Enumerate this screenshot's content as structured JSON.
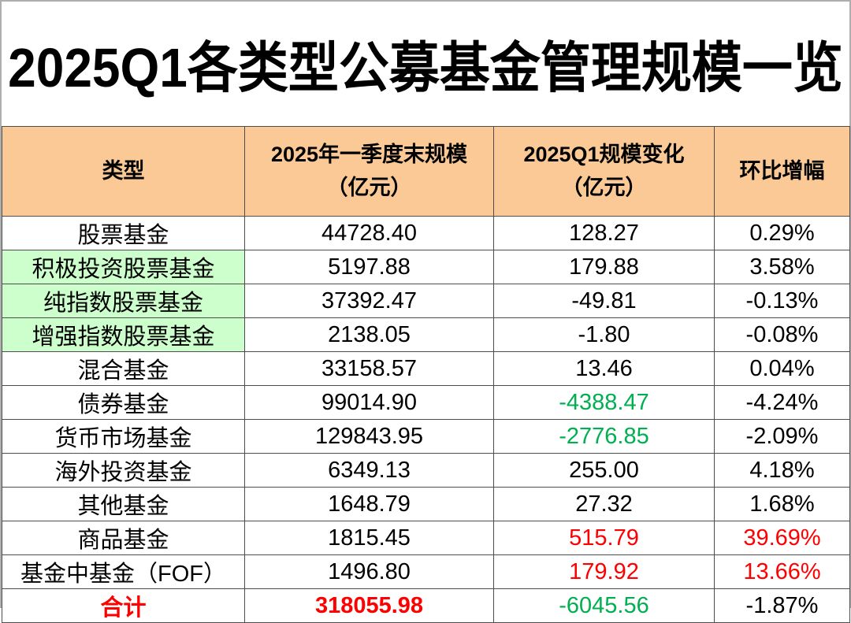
{
  "page": {
    "title": "2025Q1各类型公募基金管理规模一览"
  },
  "colors": {
    "header_bg": "#FBC996",
    "highlight_row_bg": "#CCFFCC",
    "negative_text": "#00B050",
    "positive_text": "#FF0000",
    "total_text": "#FF0000",
    "grid_line": "#4D4D4D",
    "default_text": "#000000"
  },
  "table": {
    "headers": [
      {
        "label": "类型"
      },
      {
        "label": "2025年一季度末规模\n（亿元）"
      },
      {
        "label": "2025Q1规模变化\n（亿元）"
      },
      {
        "label": "环比增幅"
      }
    ],
    "rows": [
      {
        "type": "股票基金",
        "scale": "44728.40",
        "change": "128.27",
        "pct": "0.29%"
      },
      {
        "type": "积极投资股票基金",
        "scale": "5197.88",
        "change": "179.88",
        "pct": "3.58%"
      },
      {
        "type": "纯指数股票基金",
        "scale": "37392.47",
        "change": "-49.81",
        "pct": "-0.13%"
      },
      {
        "type": "增强指数股票基金",
        "scale": "2138.05",
        "change": "-1.80",
        "pct": "-0.08%"
      },
      {
        "type": "混合基金",
        "scale": "33158.57",
        "change": "13.46",
        "pct": "0.04%"
      },
      {
        "type": "债券基金",
        "scale": "99014.90",
        "change": "-4388.47",
        "pct": "-4.24%"
      },
      {
        "type": "货币市场基金",
        "scale": "129843.95",
        "change": "-2776.85",
        "pct": "-2.09%"
      },
      {
        "type": "海外投资基金",
        "scale": "6349.13",
        "change": "255.00",
        "pct": "4.18%"
      },
      {
        "type": "其他基金",
        "scale": "1648.79",
        "change": "27.32",
        "pct": "1.68%"
      },
      {
        "type": "商品基金",
        "scale": "1815.45",
        "change": "515.79",
        "pct": "39.69%"
      },
      {
        "type": "基金中基金（FOF）",
        "scale": "1496.80",
        "change": "179.92",
        "pct": "13.66%"
      },
      {
        "type": "合计",
        "scale": "318055.98",
        "change": "-6045.56",
        "pct": "-1.87%"
      }
    ]
  },
  "chart_data": {
    "type": "table",
    "title": "2025Q1各类型公募基金管理规模一览",
    "columns": [
      "类型",
      "2025年一季度末规模（亿元）",
      "2025Q1规模变化（亿元）",
      "环比增幅"
    ],
    "rows": [
      [
        "股票基金",
        44728.4,
        128.27,
        "0.29%"
      ],
      [
        "积极投资股票基金",
        5197.88,
        179.88,
        "3.58%"
      ],
      [
        "纯指数股票基金",
        37392.47,
        -49.81,
        "-0.13%"
      ],
      [
        "增强指数股票基金",
        2138.05,
        -1.8,
        "-0.08%"
      ],
      [
        "混合基金",
        33158.57,
        13.46,
        "0.04%"
      ],
      [
        "债券基金",
        99014.9,
        -4388.47,
        "-4.24%"
      ],
      [
        "货币市场基金",
        129843.95,
        -2776.85,
        "-2.09%"
      ],
      [
        "海外投资基金",
        6349.13,
        255.0,
        "4.18%"
      ],
      [
        "其他基金",
        1648.79,
        27.32,
        "1.68%"
      ],
      [
        "商品基金",
        1815.45,
        515.79,
        "39.69%"
      ],
      [
        "基金中基金（FOF）",
        1496.8,
        179.92,
        "13.66%"
      ],
      [
        "合计",
        318055.98,
        -6045.56,
        "-1.87%"
      ]
    ],
    "notes": {
      "highlighted_green_bg_rows": [
        "积极投资股票基金",
        "纯指数股票基金",
        "增强指数股票基金"
      ],
      "green_text_cells": [
        "-4388.47",
        "-2776.85",
        "-6045.56"
      ],
      "red_text_cells": [
        "515.79",
        "39.69%",
        "179.92",
        "13.66%",
        "合计",
        "318055.98"
      ]
    }
  }
}
